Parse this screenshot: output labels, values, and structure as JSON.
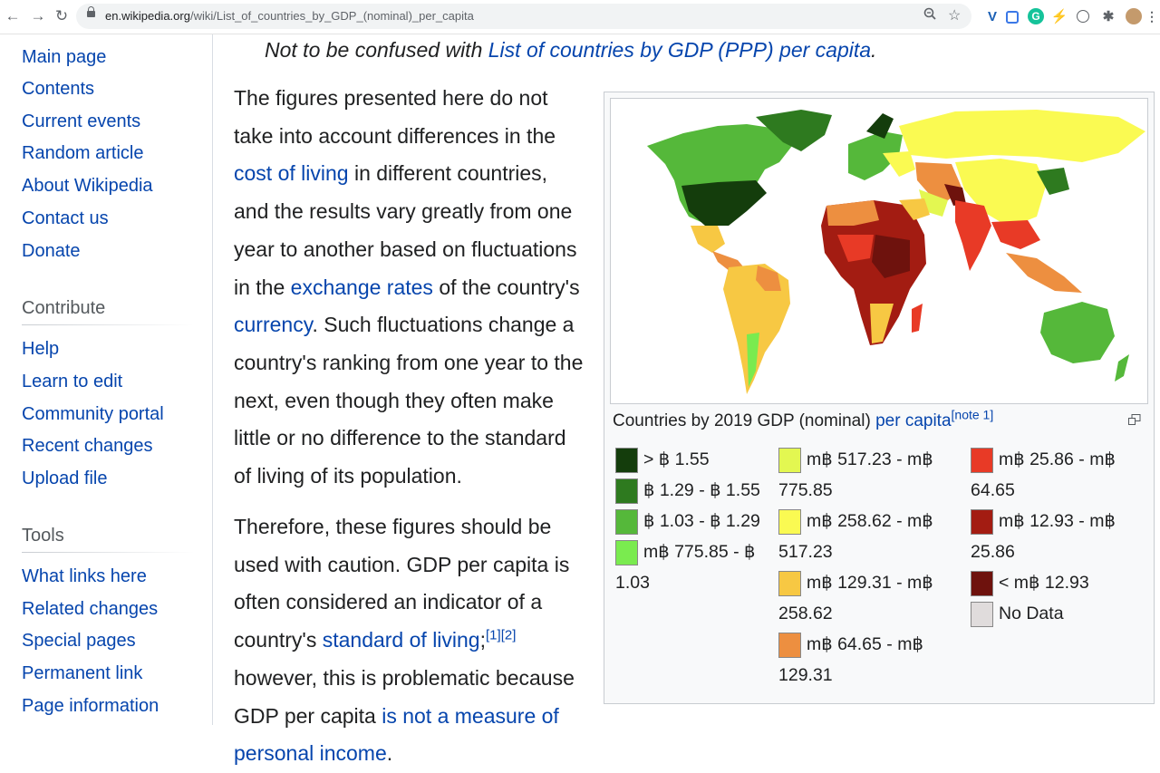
{
  "browser": {
    "url_host": "en.wikipedia.org",
    "url_path": "/wiki/List_of_countries_by_GDP_(nominal)_per_capita"
  },
  "sidebar": {
    "navigation": [
      "Main page",
      "Contents",
      "Current events",
      "Random article",
      "About Wikipedia",
      "Contact us",
      "Donate"
    ],
    "contribute_heading": "Contribute",
    "contribute": [
      "Help",
      "Learn to edit",
      "Community portal",
      "Recent changes",
      "Upload file"
    ],
    "tools_heading": "Tools",
    "tools": [
      "What links here",
      "Related changes",
      "Special pages",
      "Permanent link",
      "Page information"
    ]
  },
  "article": {
    "hatnote_prefix": "Not to be confused with ",
    "hatnote_link": "List of countries by GDP (PPP) per capita",
    "hatnote_suffix": ".",
    "p1": {
      "t1": "The figures presented here do not take into account differences in the ",
      "link1": "cost of living",
      "t2": " in different countries, and the results vary greatly from one year to another based on fluctuations in the ",
      "link2": "exchange rates",
      "t3": " of the country's ",
      "link3": "currency",
      "t4": ". Such fluctuations change a country's ranking from one year to the next, even though they often make little or no difference to the standard of living of its population."
    },
    "p2": {
      "t1": "Therefore, these figures should be used with caution. GDP per capita is often considered an indicator of a country's ",
      "link1": "standard of living",
      "t2": ";",
      "ref1": "[1]",
      "ref2": "[2]",
      "t3": " however, this is problematic because GDP per capita ",
      "link2": "is not a measure of personal income",
      "t4": "."
    }
  },
  "thumb": {
    "caption": "Countries by 2019 GDP (nominal) ",
    "caption_link": "per capita",
    "caption_note": "[note 1]",
    "legend": [
      {
        "label": "> ฿ 1.55",
        "color": "#143d0c"
      },
      {
        "label": "฿ 1.29 - ฿ 1.55",
        "color": "#2e7a1f"
      },
      {
        "label": "฿ 1.03 - ฿ 1.29",
        "color": "#55b83a"
      },
      {
        "label": "m฿ 775.85 - ฿ 1.03",
        "color": "#7aeb4f"
      },
      {
        "label": "m฿ 517.23 - m฿ 775.85",
        "color": "#e3f751"
      },
      {
        "label": "m฿ 258.62 - m฿ 517.23",
        "color": "#fafa52"
      },
      {
        "label": "m฿ 129.31 - m฿ 258.62",
        "color": "#f7c843"
      },
      {
        "label": "m฿ 64.65 - m฿ 129.31",
        "color": "#ed8f40"
      },
      {
        "label": "m฿ 25.86 - m฿ 64.65",
        "color": "#e83a26"
      },
      {
        "label": "m฿ 12.93 - m฿ 25.86",
        "color": "#a31c12"
      },
      {
        "label": "< m฿ 12.93",
        "color": "#6e120d"
      },
      {
        "label": "No Data",
        "color": "#e0dcdc"
      }
    ]
  }
}
